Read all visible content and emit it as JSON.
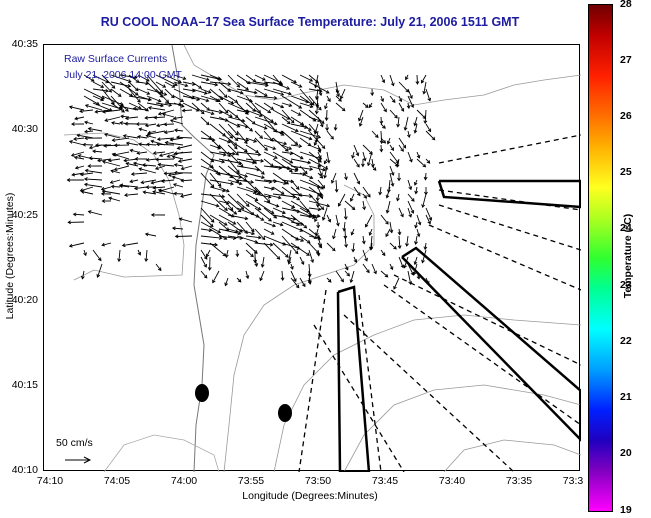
{
  "title": "RU COOL  NOAA–17  Sea Surface Temperature:  July 21, 2006 1511 GMT",
  "legend": {
    "line1": "Raw Surface Currents",
    "line2": "July 21, 2006 14:00 GMT",
    "scale_label": "50 cm/s"
  },
  "axes": {
    "xlabel": "Longitude (Degrees:Minutes)",
    "ylabel": "Latitude (Degrees:Minutes)",
    "x_ticks": [
      "74:10",
      "74:05",
      "74:00",
      "73:55",
      "73:50",
      "73:45",
      "73:40",
      "73:35",
      "73:3"
    ],
    "y_ticks": [
      "40:35",
      "40:30",
      "40:25",
      "40:20",
      "40:15",
      "40:10"
    ]
  },
  "colorbar": {
    "label": "Temperature (°C)",
    "ticks": [
      "28",
      "27",
      "26",
      "25",
      "24",
      "23",
      "22",
      "21",
      "20",
      "19"
    ],
    "range": [
      19,
      28
    ]
  },
  "colors": {
    "title": "#1c1ca0",
    "legend": "#1c1ca0",
    "vectors": "#000000",
    "contours": "#888888"
  }
}
